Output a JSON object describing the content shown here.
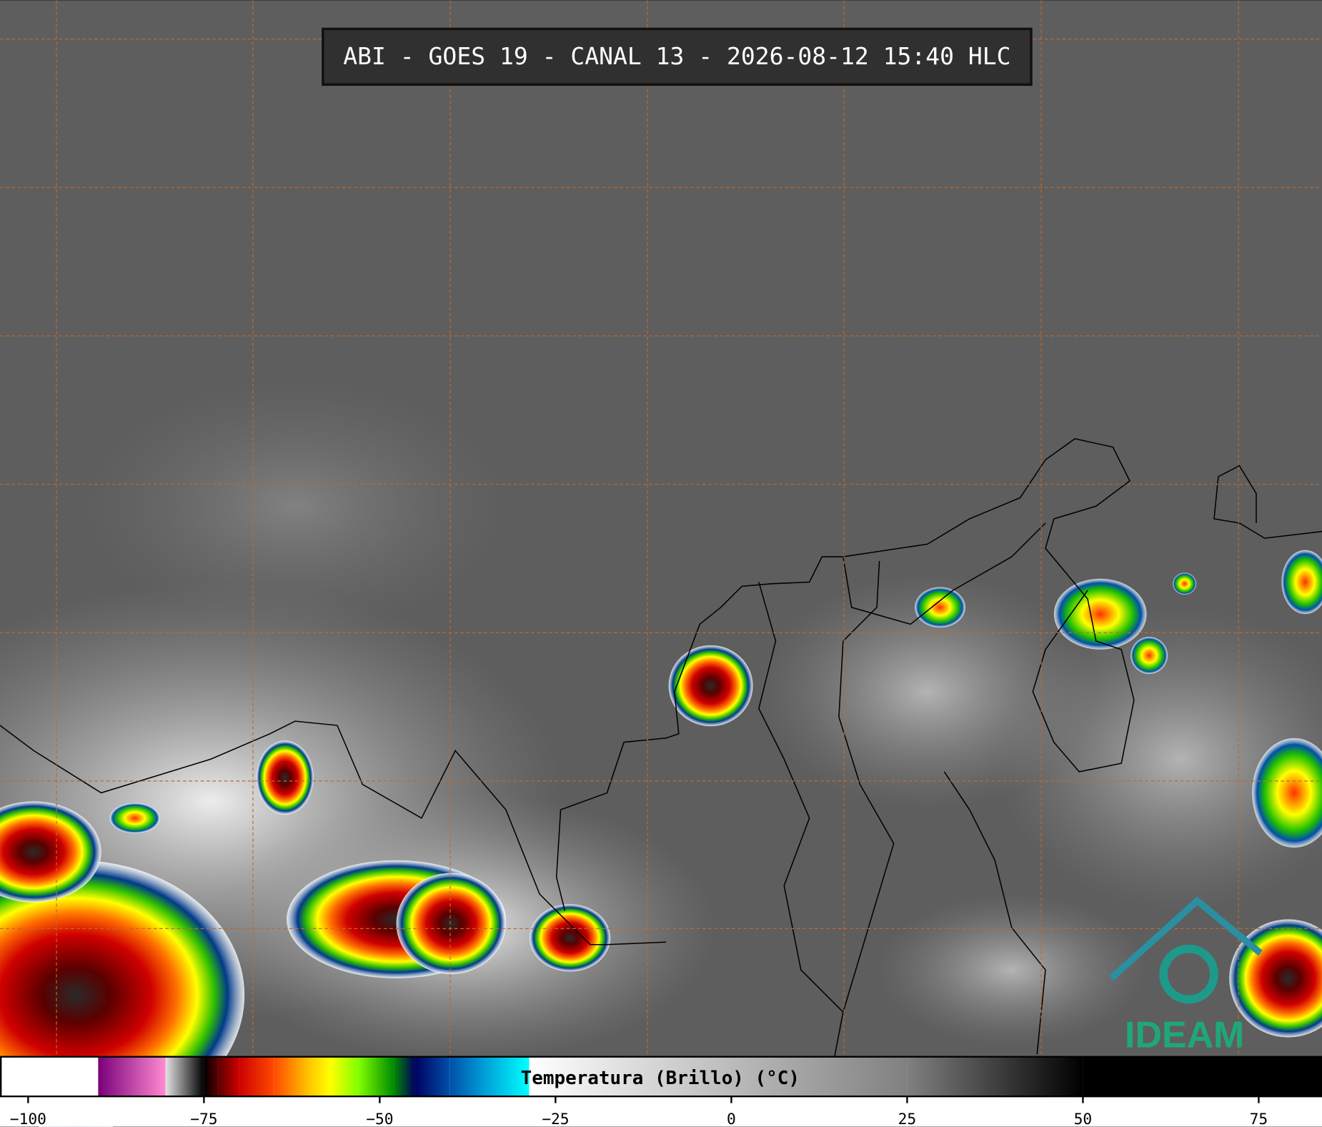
{
  "title": "ABI - GOES 19 - CANAL 13 - 2026-08-12 15:40 HLC",
  "logo": "IDEAM",
  "chart_data": {
    "type": "colorbar",
    "label": "Temperatura (Brillo) (°C)",
    "xlim": [
      -104,
      84
    ],
    "xticks": [
      {
        "value": -100,
        "label": "−100"
      },
      {
        "value": -75,
        "label": "−75"
      },
      {
        "value": -50,
        "label": "−50"
      },
      {
        "value": -25,
        "label": "−25"
      },
      0,
      25,
      50,
      75
    ],
    "colormap": [
      {
        "value": -104,
        "color": "#ffffff"
      },
      {
        "value": -90.1,
        "color": "#ffffff"
      },
      {
        "value": -90,
        "color": "#7a007a"
      },
      {
        "value": -80.5,
        "color": "#ff8ad0"
      },
      {
        "value": -80.4,
        "color": "#e0e0e0"
      },
      {
        "value": -75,
        "color": "#000000"
      },
      {
        "value": -73,
        "color": "#5a0000"
      },
      {
        "value": -70,
        "color": "#cc0000"
      },
      {
        "value": -65,
        "color": "#ff4a00"
      },
      {
        "value": -60,
        "color": "#ffc800"
      },
      {
        "value": -57,
        "color": "#ffff00"
      },
      {
        "value": -53,
        "color": "#80ff00"
      },
      {
        "value": -48,
        "color": "#008a00"
      },
      {
        "value": -45,
        "color": "#000060"
      },
      {
        "value": -40,
        "color": "#0050a8"
      },
      {
        "value": -35,
        "color": "#00a0d8"
      },
      {
        "value": -28.8,
        "color": "#00ffff"
      },
      {
        "value": -28.7,
        "color": "#ffffff"
      },
      {
        "value": 25,
        "color": "#808080"
      },
      {
        "value": 50,
        "color": "#000000"
      },
      {
        "value": 84,
        "color": "#000000"
      }
    ]
  }
}
